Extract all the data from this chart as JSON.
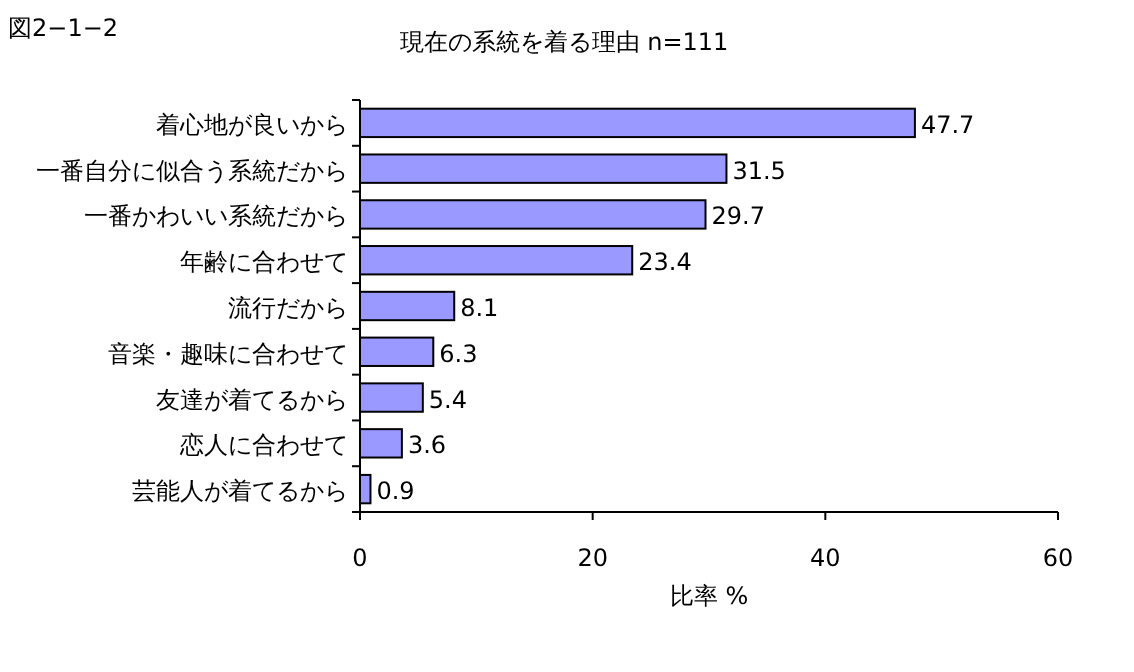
{
  "chart_data": {
    "type": "bar",
    "orientation": "horizontal",
    "title": "現在の系統を着る理由  n=111",
    "xlabel": "比率 %",
    "annotations": [
      "図2−1−2"
    ],
    "categories": [
      "着心地が良いから",
      "一番自分に似合う系統だから",
      "一番かわいい系統だから",
      "年齢に合わせて",
      "流行だから",
      "音楽・趣味に合わせて",
      "友達が着てるから",
      "恋人に合わせて",
      "芸能人が着てるから"
    ],
    "values": [
      47.7,
      31.5,
      29.7,
      23.4,
      8.1,
      6.3,
      5.4,
      3.6,
      0.9
    ],
    "color": "#9999ff",
    "xlim": [
      0,
      60
    ],
    "xticks": [
      0,
      20,
      40,
      60
    ],
    "data_labels": true
  }
}
